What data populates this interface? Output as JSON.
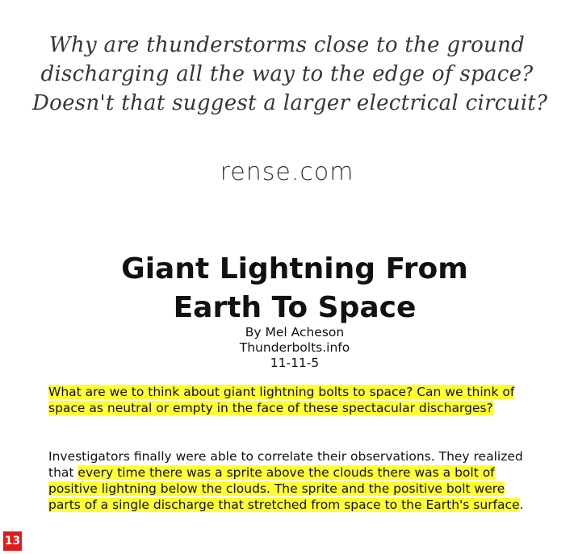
{
  "headline": {
    "lines": [
      "Why are thunderstorms close to the ground",
      "discharging all the way to the edge of space?",
      "Doesn't that suggest a larger electrical circuit?"
    ]
  },
  "source_logo": "rense.com",
  "article": {
    "title_lines": [
      "Giant Lightning From",
      "Earth To Space"
    ],
    "byline": "By Mel Acheson",
    "site": "Thunderbolts.info",
    "date": "11-11-5",
    "intro": "What are we to think about giant lightning bolts to space? Can we think of space as neutral or empty in the face of these spectacular discharges?",
    "para2_plain": "Investigators finally were able to correlate their observations. They realized that ",
    "para2_highlight": "every time there was a sprite above the clouds there was a bolt of positive lightning below the clouds. The sprite and the positive bolt were parts of a single discharge that stretched from space to the Earth's surface",
    "para2_end": "."
  },
  "page_number": "13",
  "colors": {
    "highlight": "#ffff33",
    "badge": "#e01b1b"
  }
}
